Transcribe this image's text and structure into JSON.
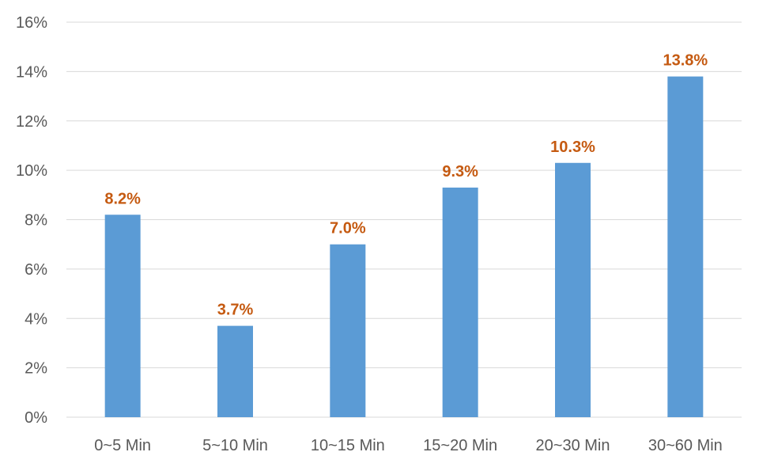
{
  "chart_data": {
    "type": "bar",
    "title": "",
    "xlabel": "",
    "ylabel": "",
    "categories": [
      "0~5 Min",
      "5~10 Min",
      "10~15 Min",
      "15~20 Min",
      "20~30 Min",
      "30~60 Min"
    ],
    "values": [
      8.2,
      3.7,
      7.0,
      9.3,
      10.3,
      13.8
    ],
    "data_labels": [
      "8.2%",
      "3.7%",
      "7.0%",
      "9.3%",
      "10.3%",
      "13.8%"
    ],
    "ylim": [
      0,
      16
    ],
    "y_ticks": [
      0,
      2,
      4,
      6,
      8,
      10,
      12,
      14,
      16
    ],
    "y_tick_labels": [
      "0%",
      "2%",
      "4%",
      "6%",
      "8%",
      "10%",
      "12%",
      "14%",
      "16%"
    ],
    "grid": true,
    "legend": "none",
    "colors": {
      "bar": "#5b9bd5",
      "data_label": "#c55a11",
      "gridline": "#d9d9d9",
      "axis_text": "#595959"
    }
  }
}
